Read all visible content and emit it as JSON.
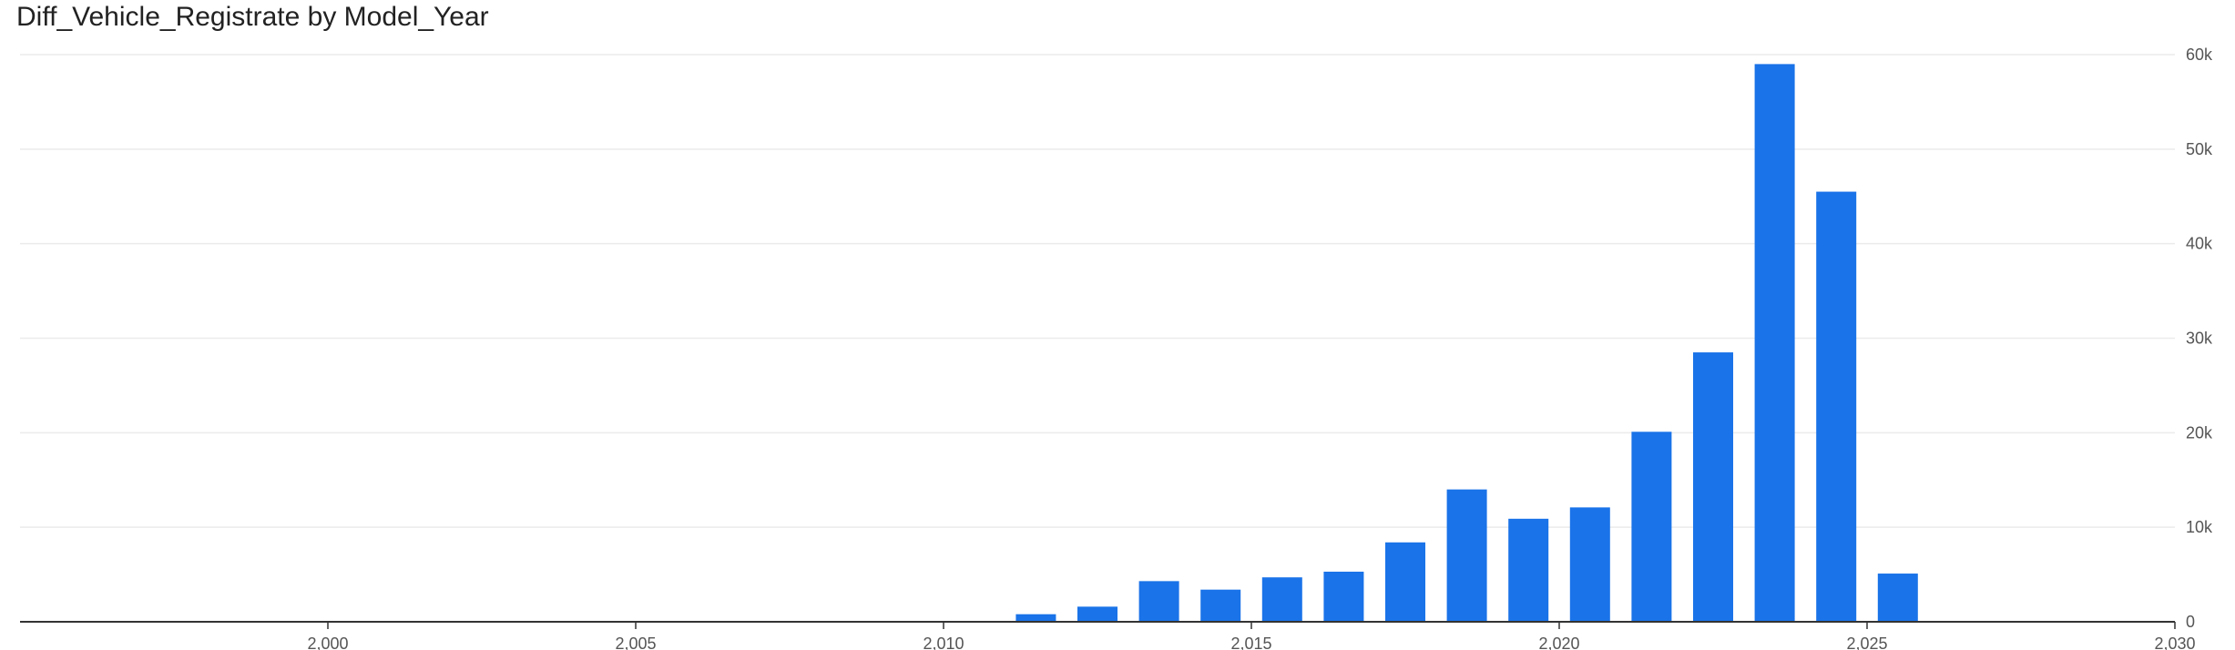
{
  "chart_data": {
    "type": "bar",
    "title": "Diff_Vehicle_Registrate by Model_Year",
    "xlabel": "",
    "ylabel": "",
    "x": [
      2011,
      2012,
      2013,
      2014,
      2015,
      2016,
      2017,
      2018,
      2019,
      2020,
      2021,
      2022,
      2023,
      2024,
      2025
    ],
    "values": [
      800,
      1600,
      4300,
      3400,
      4700,
      5300,
      8400,
      14000,
      10900,
      12100,
      20100,
      28500,
      59000,
      45500,
      5100
    ],
    "xlim": [
      1995,
      2030
    ],
    "ylim": [
      0,
      60000
    ],
    "x_ticks": [
      "2,000",
      "2,005",
      "2,010",
      "2,015",
      "2,020",
      "2,025",
      "2,030"
    ],
    "x_tick_values": [
      2000,
      2005,
      2010,
      2015,
      2020,
      2025,
      2030
    ],
    "y_ticks": [
      "0",
      "10k",
      "20k",
      "30k",
      "40k",
      "50k",
      "60k"
    ],
    "y_tick_values": [
      0,
      10000,
      20000,
      30000,
      40000,
      50000,
      60000
    ],
    "y_axis_side": "right",
    "grid": true,
    "legend": "none",
    "colors": {
      "bar": "#1a73e8",
      "grid": "#ebebeb",
      "axis": "#333333",
      "tick_text": "#555555"
    }
  }
}
